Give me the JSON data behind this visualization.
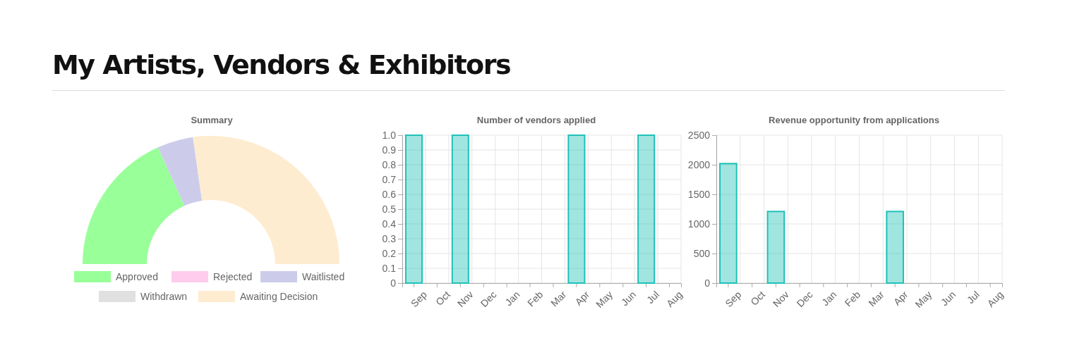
{
  "chart_data": [
    {
      "type": "donut",
      "title": "My Artists, Vendors & Exhibitors",
      "subtitle": "Summary",
      "categories": [
        "Approved",
        "Rejected",
        "Waitlisted",
        "Withdrawn",
        "Awaiting Decision"
      ],
      "values": [
        36.4,
        0,
        9.1,
        0,
        54.5
      ],
      "colors": [
        "#99ff99",
        "#ffccee",
        "#ccccea",
        "#e0e0e0",
        "#feecd0"
      ],
      "legend": "bottom"
    },
    {
      "type": "bar",
      "title": "Number of vendors applied",
      "categories": [
        "Sep",
        "Oct",
        "Nov",
        "Dec",
        "Jan",
        "Feb",
        "Mar",
        "Apr",
        "May",
        "Jun",
        "Jul",
        "Aug"
      ],
      "series": [
        {
          "color": "#1fc1b7",
          "values": [
            1,
            0,
            1,
            0,
            0,
            0,
            0,
            1,
            0,
            0,
            1,
            0
          ]
        }
      ],
      "ylim": [
        0,
        1
      ],
      "yticks": [
        {
          "value": 0,
          "label": "0"
        },
        0.1,
        0.2,
        0.3,
        0.4,
        0.5,
        0.6,
        0.7,
        0.8,
        0.9,
        {
          "value": 1,
          "label": "1.0"
        }
      ],
      "grid": true
    },
    {
      "type": "bar",
      "title": "Revenue opportunity from applications",
      "categories": [
        "Sep",
        "Oct",
        "Nov",
        "Dec",
        "Jan",
        "Feb",
        "Mar",
        "Apr",
        "May",
        "Jun",
        "Jul",
        "Aug"
      ],
      "series": [
        {
          "color": "#1fc1b7",
          "values": [
            2020,
            0,
            1210,
            0,
            0,
            0,
            0,
            1210,
            0,
            0,
            0,
            0
          ]
        }
      ],
      "ylim": [
        0,
        2500
      ],
      "yticks": [
        0,
        500,
        1000,
        1500,
        2000,
        2500
      ],
      "grid": true
    }
  ]
}
